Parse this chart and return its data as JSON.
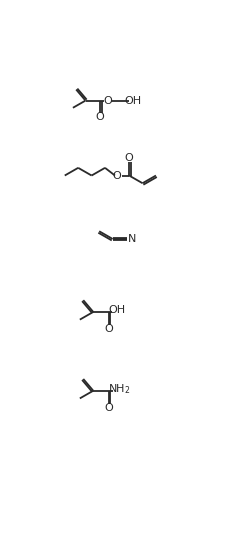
{
  "background": "#ffffff",
  "line_color": "#2a2a2a",
  "line_width": 1.3,
  "fig_width": 2.5,
  "fig_height": 5.34,
  "dpi": 100,
  "xlim": [
    0,
    10
  ],
  "ylim": [
    0,
    21.4
  ],
  "mol1_y": 19.5,
  "mol2_y": 15.6,
  "mol3_y": 12.3,
  "mol4_y": 8.5,
  "mol5_y": 3.5
}
